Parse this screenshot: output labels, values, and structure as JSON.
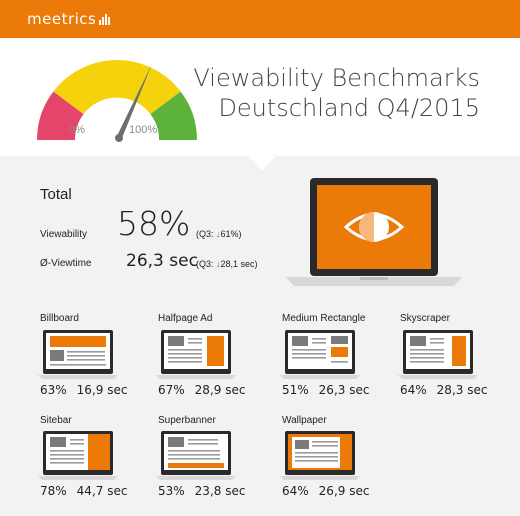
{
  "logo": {
    "text": "meetrics"
  },
  "gauge": {
    "min_label": "0%",
    "max_label": "100%"
  },
  "title": {
    "line1": "Viewability Benchmarks",
    "line2": "Deutschland Q4/2015"
  },
  "total": {
    "heading": "Total",
    "viewability_label": "Viewability",
    "viewability_value": "58%",
    "viewability_prev_prefix": "(Q3:",
    "viewability_prev_arrow": "↓",
    "viewability_prev_value": "61%)",
    "viewtime_label": "Ø-Viewtime",
    "viewtime_value": "26,3 sec",
    "viewtime_prev_prefix": "(Q3:",
    "viewtime_prev_arrow": "↓",
    "viewtime_prev_value": "28,1 sec)"
  },
  "colors": {
    "orange": "#ec7a08",
    "arrow_down": "#e0245e",
    "screen_gray": "#7a7a7a"
  },
  "formats": [
    {
      "name": "Billboard",
      "percent": "63%",
      "time": "16,9 sec",
      "layout": "billboard"
    },
    {
      "name": "Halfpage Ad",
      "percent": "67%",
      "time": "28,9 sec",
      "layout": "halfpage"
    },
    {
      "name": "Medium Rectangle",
      "percent": "51%",
      "time": "26,3 sec",
      "layout": "medrect"
    },
    {
      "name": "Skyscraper",
      "percent": "64%",
      "time": "28,3 sec",
      "layout": "skyscraper"
    },
    {
      "name": "Sitebar",
      "percent": "78%",
      "time": "44,7 sec",
      "layout": "sitebar"
    },
    {
      "name": "Superbanner",
      "percent": "53%",
      "time": "23,8 sec",
      "layout": "superbanner"
    },
    {
      "name": "Wallpaper",
      "percent": "64%",
      "time": "26,9 sec",
      "layout": "wallpaper"
    }
  ]
}
